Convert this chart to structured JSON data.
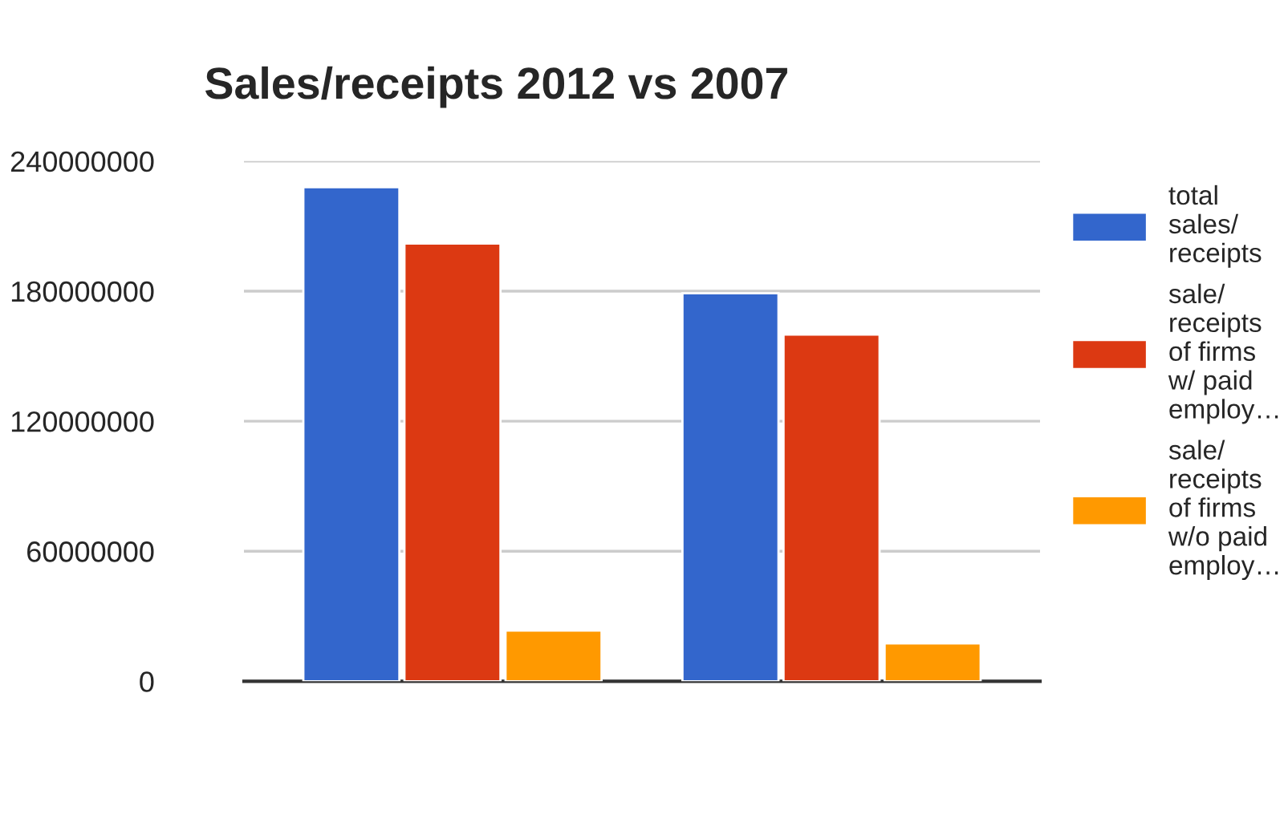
{
  "chart_data": {
    "type": "bar",
    "title": "Sales/receipts 2012 vs 2007",
    "categories": [
      null,
      null
    ],
    "series": [
      {
        "name": "total\nsales/\nreceipts",
        "color": "#3366cc",
        "values": [
          228000000,
          179000000
        ]
      },
      {
        "name": "sale/\nreceipts\nof firms\nw/ paid\nemploy…",
        "color": "#dc3912",
        "values": [
          202000000,
          160000000
        ]
      },
      {
        "name": "sale/\nreceipts\nof firms\nw/o paid\nemploy…",
        "color": "#ff9900",
        "values": [
          23400000,
          17500000
        ]
      }
    ],
    "ylim": [
      0,
      240000000
    ],
    "yticks": [
      0,
      60000000,
      120000000,
      180000000,
      240000000
    ],
    "grid": "y",
    "legend": "right",
    "tick_labels": "y"
  }
}
